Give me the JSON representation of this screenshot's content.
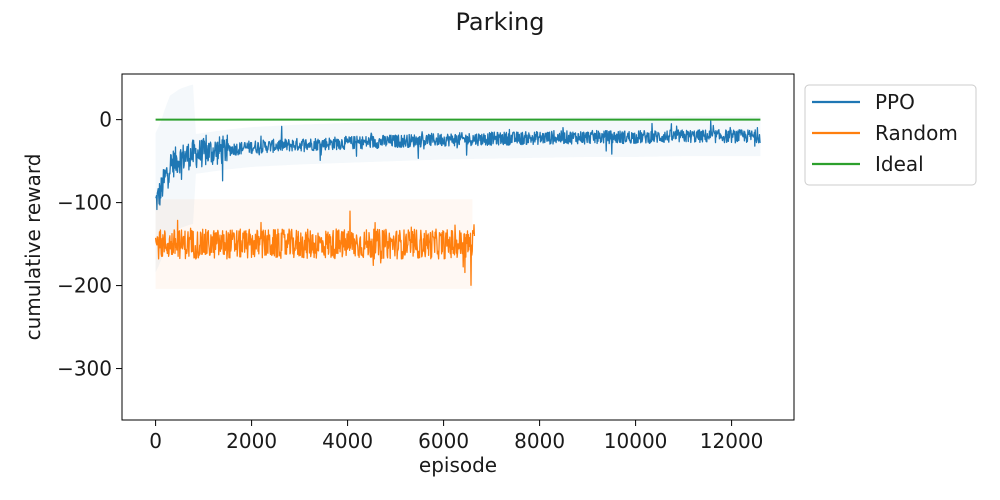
{
  "chart_data": {
    "type": "line",
    "title": "Parking",
    "xlabel": "episode",
    "ylabel": "cumulative reward",
    "xlim": [
      -700,
      13300
    ],
    "ylim": [
      -362,
      55
    ],
    "xticks": [
      0,
      2000,
      4000,
      6000,
      8000,
      10000,
      12000
    ],
    "xtick_labels": [
      "0",
      "2000",
      "4000",
      "6000",
      "8000",
      "10000",
      "12000"
    ],
    "yticks": [
      0,
      -100,
      -200,
      -300
    ],
    "ytick_labels": [
      "0",
      "−100",
      "−200",
      "−300"
    ],
    "grid": false,
    "legend_position": "outside top-right",
    "series": [
      {
        "name": "PPO",
        "color": "#1f77b4",
        "x": [
          0,
          100,
          200,
          300,
          500,
          750,
          1000,
          1500,
          2000,
          3000,
          4000,
          5000,
          6000,
          7000,
          8000,
          9000,
          10000,
          11000,
          12000,
          12600
        ],
        "y": [
          -100,
          -88,
          -70,
          -55,
          -47,
          -42,
          -40,
          -36,
          -33,
          -30,
          -28,
          -26,
          -24,
          -23,
          -22,
          -21,
          -21,
          -20,
          -20,
          -20
        ],
        "noise": 8
      },
      {
        "name": "Random",
        "color": "#ff7f0e",
        "x": [
          0,
          1000,
          2000,
          3000,
          4000,
          5000,
          6000,
          6650
        ],
        "y": [
          -150,
          -150,
          -150,
          -150,
          -150,
          -150,
          -150,
          -150
        ],
        "noise": 18
      },
      {
        "name": "Ideal",
        "color": "#2ca02c",
        "x": [
          0,
          12600
        ],
        "y": [
          0,
          0
        ],
        "noise": 0
      }
    ]
  }
}
